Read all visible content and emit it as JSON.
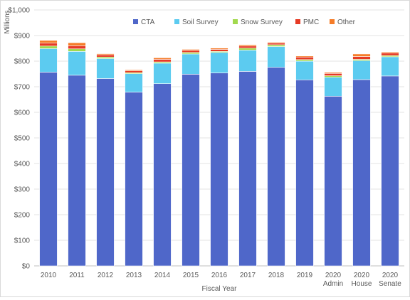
{
  "chart_data": {
    "type": "bar",
    "stacked": true,
    "xlabel": "Fiscal Year",
    "ylabel": "Millions",
    "ylim": [
      0,
      1000
    ],
    "yticks": [
      "$0",
      "$100",
      "$200",
      "$300",
      "$400",
      "$500",
      "$600",
      "$700",
      "$800",
      "$900",
      "$1,000"
    ],
    "grid": true,
    "legend_position": "top",
    "categories": [
      [
        "2010"
      ],
      [
        "2011"
      ],
      [
        "2012"
      ],
      [
        "2013"
      ],
      [
        "2014"
      ],
      [
        "2015"
      ],
      [
        "2016"
      ],
      [
        "2017"
      ],
      [
        "2018"
      ],
      [
        "2019"
      ],
      [
        "2020",
        "Admin"
      ],
      [
        "2020",
        "House"
      ],
      [
        "2020",
        "Senate"
      ]
    ],
    "series": [
      {
        "name": "CTA",
        "color": "#4f67c9",
        "values": [
          757,
          745,
          732,
          679,
          712,
          749,
          754,
          760,
          776,
          727,
          663,
          728,
          742
        ]
      },
      {
        "name": "Soil Survey",
        "color": "#5ccbf0",
        "values": [
          92,
          93,
          78,
          72,
          80,
          79,
          80,
          83,
          81,
          73,
          74,
          74,
          75
        ]
      },
      {
        "name": "Snow Survey",
        "color": "#a2d94e",
        "values": [
          10,
          10,
          6,
          4,
          5,
          6,
          4,
          8,
          7,
          6,
          6,
          5,
          5
        ]
      },
      {
        "name": "PMC",
        "color": "#e63a24",
        "values": [
          12,
          12,
          9,
          7,
          10,
          8,
          8,
          8,
          7,
          10,
          9,
          11,
          10
        ]
      },
      {
        "name": "Other",
        "color": "#f57c28",
        "values": [
          10,
          12,
          4,
          4,
          6,
          4,
          5,
          5,
          3,
          4,
          4,
          10,
          4
        ]
      }
    ]
  }
}
